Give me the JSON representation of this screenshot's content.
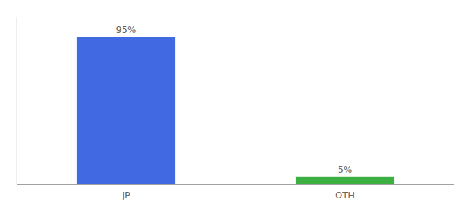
{
  "chart_data": {
    "type": "bar",
    "categories": [
      "JP",
      "OTH"
    ],
    "values": [
      95,
      5
    ],
    "value_labels": [
      "95%",
      "5%"
    ],
    "colors": [
      "#4169e1",
      "#3cb043"
    ],
    "ylim": [
      0,
      108
    ],
    "data_labels": true,
    "tick_labels": "x"
  }
}
